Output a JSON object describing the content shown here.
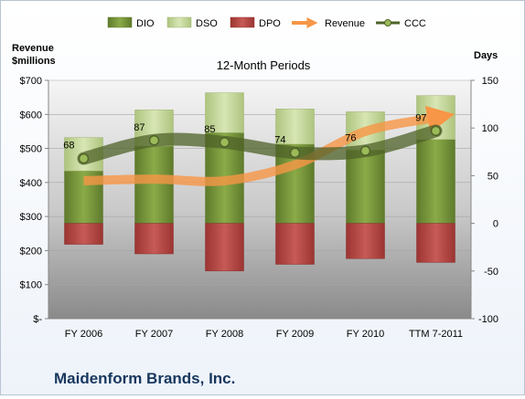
{
  "chart_data": {
    "type": "bar",
    "title": "12-Month Periods",
    "company": "Maidenform Brands, Inc.",
    "categories": [
      "FY 2006",
      "FY 2007",
      "FY 2008",
      "FY 2009",
      "FY 2010",
      "TTM 7-2011"
    ],
    "legend": {
      "position": "top",
      "entries": [
        "DIO",
        "DSO",
        "DPO",
        "Revenue",
        "CCC"
      ]
    },
    "left_axis": {
      "label_line1": "Revenue",
      "label_line2": "$millions",
      "range": [
        0,
        700
      ],
      "ticks": [
        "$-",
        "$100",
        "$200",
        "$300",
        "$400",
        "$500",
        "$600",
        "$700"
      ]
    },
    "right_axis": {
      "label": "Days",
      "range": [
        -100,
        150
      ],
      "ticks": [
        "-100",
        "-50",
        "0",
        "50",
        "100",
        "150"
      ]
    },
    "series": [
      {
        "name": "DIO",
        "axis": "right",
        "color": "#77933c",
        "values": [
          55,
          81,
          95,
          83,
          77,
          88
        ]
      },
      {
        "name": "DSO",
        "axis": "right",
        "color": "#c3d69b",
        "values": [
          35,
          38,
          42,
          37,
          40,
          46
        ]
      },
      {
        "name": "DPO",
        "axis": "right",
        "color": "#c0504d",
        "values": [
          -22,
          -32,
          -50,
          -43,
          -37,
          -41
        ]
      },
      {
        "name": "Revenue",
        "axis": "left",
        "color": "#f79646",
        "values": [
          405,
          410,
          405,
          452,
          550,
          590
        ]
      },
      {
        "name": "CCC",
        "axis": "right",
        "color": "#4f6228",
        "values": [
          68,
          87,
          85,
          74,
          76,
          97
        ],
        "data_labels": [
          "68",
          "87",
          "85",
          "74",
          "76",
          "97"
        ]
      }
    ],
    "colors": {
      "plot_top": "#f5f5f5",
      "plot_bottom": "#8a8a8a",
      "frame_border": "#b9c4d2"
    }
  }
}
